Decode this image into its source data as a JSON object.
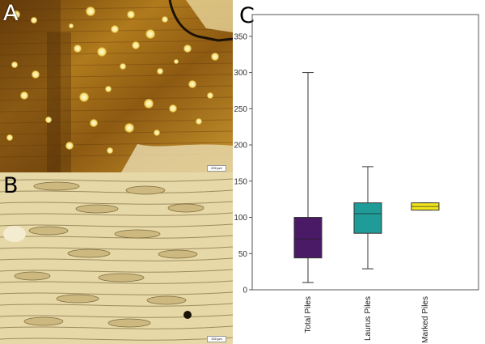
{
  "panels": {
    "a": {
      "letter": "A",
      "scale_label": "200 µm"
    },
    "b": {
      "letter": "B",
      "scale_label": "100 µm"
    },
    "c": {
      "letter": "C"
    }
  },
  "chart_data": {
    "type": "box",
    "title": "",
    "xlabel": "",
    "ylabel": "",
    "ylim": [
      0,
      380
    ],
    "yticks": [
      0,
      50,
      100,
      150,
      200,
      250,
      300,
      350
    ],
    "grid": false,
    "categories": [
      "Total Piles",
      "Laurus Piles",
      "Marked Piles"
    ],
    "boxes": [
      {
        "category": "Total Piles",
        "min": 10,
        "q1": 44,
        "median": 70,
        "q3": 100,
        "max": 300,
        "color": "#4b1a66"
      },
      {
        "category": "Laurus Piles",
        "min": 29,
        "q1": 78,
        "median": 105,
        "q3": 120,
        "max": 170,
        "color": "#1f9c98"
      },
      {
        "category": "Marked Piles",
        "min": 110,
        "q1": 110,
        "median": 115,
        "q3": 120,
        "max": 120,
        "color": "#f2e51c"
      }
    ]
  }
}
